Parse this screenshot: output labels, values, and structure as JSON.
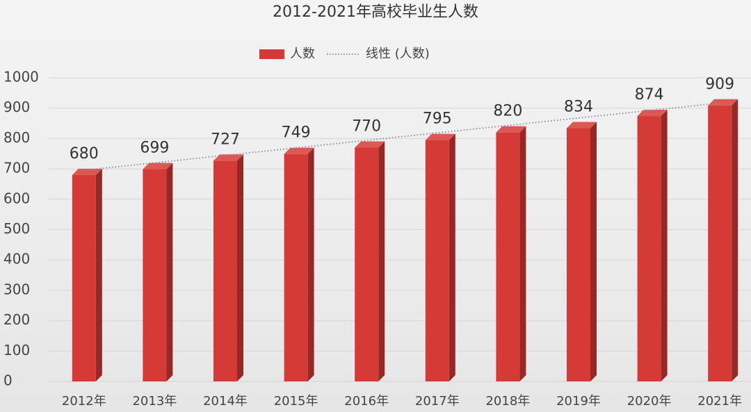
{
  "chart_data": {
    "type": "bar3d",
    "title": "2012-2021年高校毕业生人数",
    "categories": [
      "2012年",
      "2013年",
      "2014年",
      "2015年",
      "2016年",
      "2017年",
      "2018年",
      "2019年",
      "2020年",
      "2021年"
    ],
    "series": [
      {
        "name": "人数",
        "color": "#d63a36",
        "values": [
          680,
          699,
          727,
          749,
          770,
          795,
          820,
          834,
          874,
          909
        ]
      }
    ],
    "trendline": {
      "name": "线性 (人数)",
      "style": "dotted",
      "color": "#8a8f99"
    },
    "ylim": [
      0,
      1000
    ],
    "yticks": [
      0,
      100,
      200,
      300,
      400,
      500,
      600,
      700,
      800,
      900,
      1000
    ],
    "grid": true
  }
}
